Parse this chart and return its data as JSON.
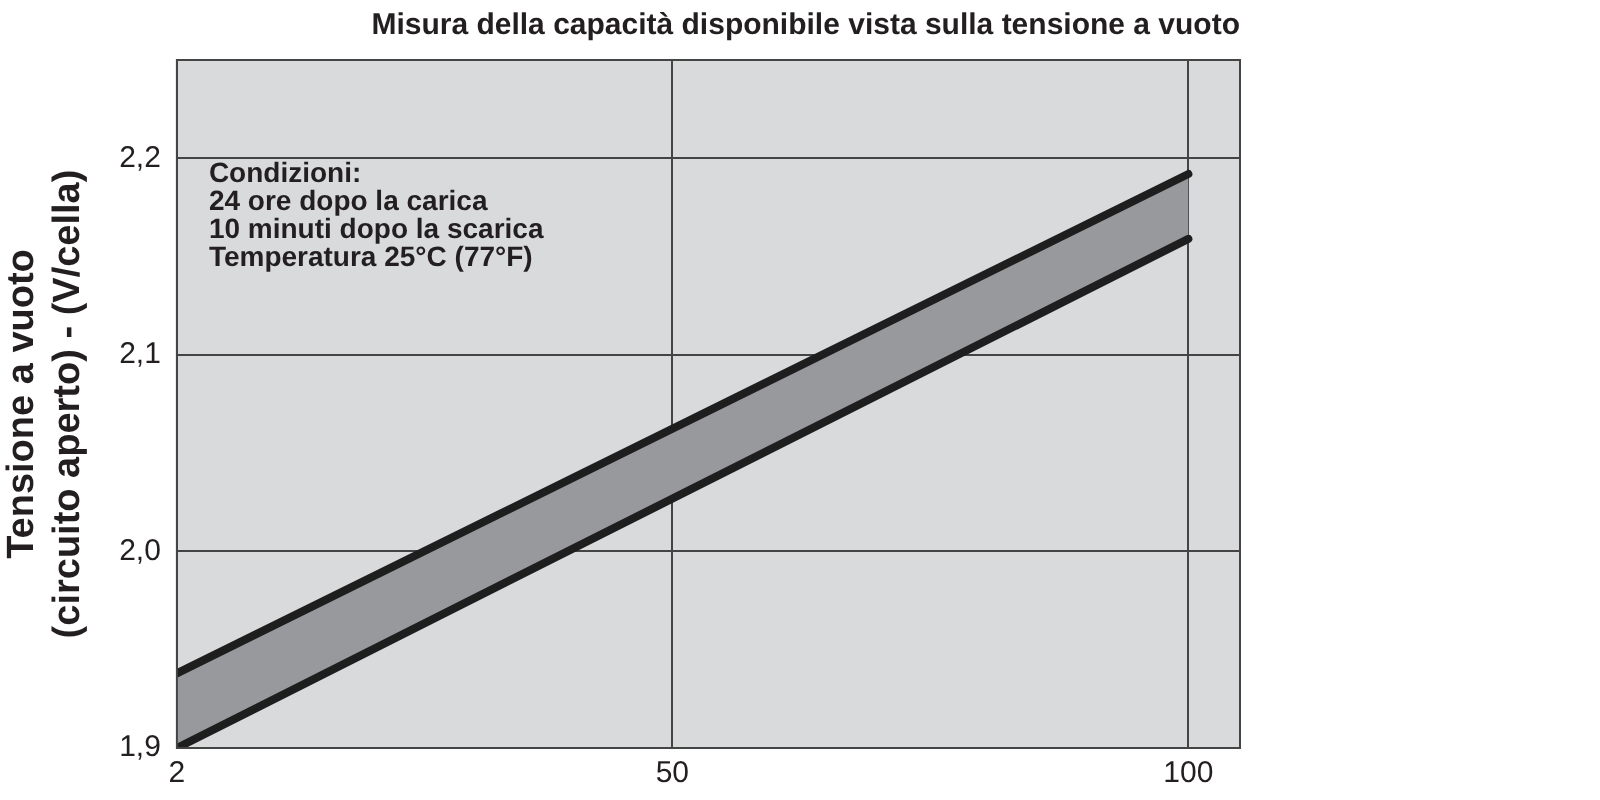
{
  "chart_data": {
    "type": "line",
    "title": "Misura della capacità disponibile vista sulla tensione a vuoto",
    "ylabel": "Tensione a vuoto\n(circuito aperto) - (V/cella)",
    "annotations": [
      "Condizioni:\n24 ore dopo la carica\n10 minuti dopo la scarica\nTemperatura 25°C (77°F)"
    ],
    "x": [
      2,
      100
    ],
    "series": [
      {
        "color": "#1e1e1e",
        "values": [
          1.9,
          2.159
        ]
      },
      {
        "color": "#1e1e1e",
        "values": [
          1.938,
          2.192
        ],
        "lower": [
          1.9,
          2.159
        ],
        "upper": [
          1.938,
          2.192
        ]
      }
    ],
    "xlim": [
      2,
      105
    ],
    "xticks": [
      2,
      50,
      100
    ],
    "ylim": [
      1.9,
      2.25
    ],
    "yticks": [
      {
        "value": 1.9,
        "label": "1,9"
      },
      {
        "value": 2.0,
        "label": "2,0"
      },
      {
        "value": 2.1,
        "label": "2,1"
      },
      {
        "value": 2.2,
        "label": "2,2"
      }
    ],
    "grid": true,
    "legend": false,
    "marker": "none",
    "line_style": "solid"
  }
}
